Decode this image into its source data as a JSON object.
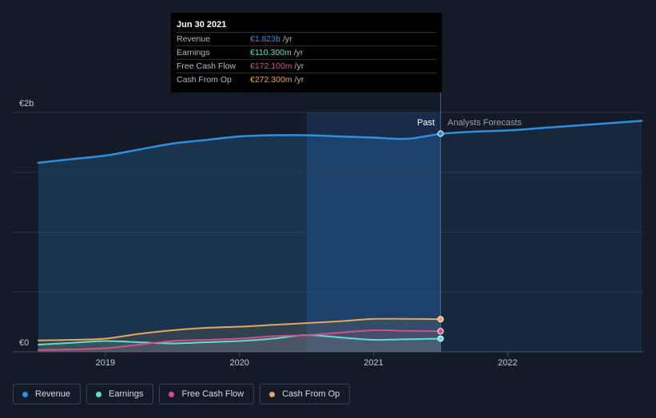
{
  "tooltip": {
    "date": "Jun 30 2021",
    "rows": [
      {
        "label": "Revenue",
        "value": "€1.823b",
        "unit": "/yr"
      },
      {
        "label": "Earnings",
        "value": "€110.300m",
        "unit": "/yr"
      },
      {
        "label": "Free Cash Flow",
        "value": "€172.100m",
        "unit": "/yr"
      },
      {
        "label": "Cash From Op",
        "value": "€272.300m",
        "unit": "/yr"
      }
    ]
  },
  "labels": {
    "past": "Past",
    "forecast": "Analysts Forecasts"
  },
  "legend": [
    {
      "label": "Revenue",
      "color": "#2e8fe0"
    },
    {
      "label": "Earnings",
      "color": "#5ee0cf"
    },
    {
      "label": "Free Cash Flow",
      "color": "#d1508c"
    },
    {
      "label": "Cash From Op",
      "color": "#e8a65c"
    }
  ],
  "chart_data": {
    "type": "line",
    "y_unit": "€",
    "yticks": [
      {
        "value": 0,
        "label": "€0"
      },
      {
        "value": 2,
        "label": "€2b"
      }
    ],
    "xticks": [
      {
        "value": 2019,
        "label": "2019"
      },
      {
        "value": 2020,
        "label": "2020"
      },
      {
        "value": 2021,
        "label": "2021"
      },
      {
        "value": 2022,
        "label": "2022"
      }
    ],
    "xlim": [
      2018.5,
      2023.0
    ],
    "ylim": [
      0,
      2.0
    ],
    "highlight_date": 2021.5,
    "shaded_region": [
      2020.5,
      2021.5
    ],
    "series": [
      {
        "name": "Revenue",
        "color": "#2e8fe0",
        "x": [
          2018.5,
          2018.75,
          2019.0,
          2019.25,
          2019.5,
          2019.75,
          2020.0,
          2020.25,
          2020.5,
          2020.75,
          2021.0,
          2021.25,
          2021.5
        ],
        "values": [
          1.58,
          1.61,
          1.64,
          1.69,
          1.74,
          1.77,
          1.8,
          1.81,
          1.81,
          1.8,
          1.79,
          1.78,
          1.823
        ]
      },
      {
        "name": "Revenue forecast",
        "color": "#2e8fe0",
        "x": [
          2021.5,
          2021.75,
          2022.0,
          2022.25,
          2022.5,
          2022.75,
          2023.0
        ],
        "values": [
          1.823,
          1.84,
          1.85,
          1.87,
          1.89,
          1.91,
          1.93
        ]
      },
      {
        "name": "Earnings",
        "color": "#5ee0cf",
        "x": [
          2018.5,
          2018.75,
          2019.0,
          2019.25,
          2019.5,
          2019.75,
          2020.0,
          2020.25,
          2020.5,
          2020.75,
          2021.0,
          2021.25,
          2021.5
        ],
        "values": [
          0.06,
          0.075,
          0.09,
          0.08,
          0.07,
          0.08,
          0.09,
          0.11,
          0.14,
          0.12,
          0.1,
          0.105,
          0.1103
        ]
      },
      {
        "name": "Free Cash Flow",
        "color": "#d1508c",
        "x": [
          2018.5,
          2018.75,
          2019.0,
          2019.25,
          2019.5,
          2019.75,
          2020.0,
          2020.25,
          2020.5,
          2020.75,
          2021.0,
          2021.25,
          2021.5
        ],
        "values": [
          0.015,
          0.02,
          0.03,
          0.06,
          0.09,
          0.1,
          0.11,
          0.13,
          0.14,
          0.16,
          0.18,
          0.175,
          0.1721
        ]
      },
      {
        "name": "Cash From Op",
        "color": "#e8a65c",
        "x": [
          2018.5,
          2018.75,
          2019.0,
          2019.25,
          2019.5,
          2019.75,
          2020.0,
          2020.25,
          2020.5,
          2020.75,
          2021.0,
          2021.25,
          2021.5
        ],
        "values": [
          0.095,
          0.1,
          0.11,
          0.15,
          0.18,
          0.2,
          0.21,
          0.225,
          0.24,
          0.255,
          0.275,
          0.275,
          0.2723
        ]
      }
    ]
  }
}
